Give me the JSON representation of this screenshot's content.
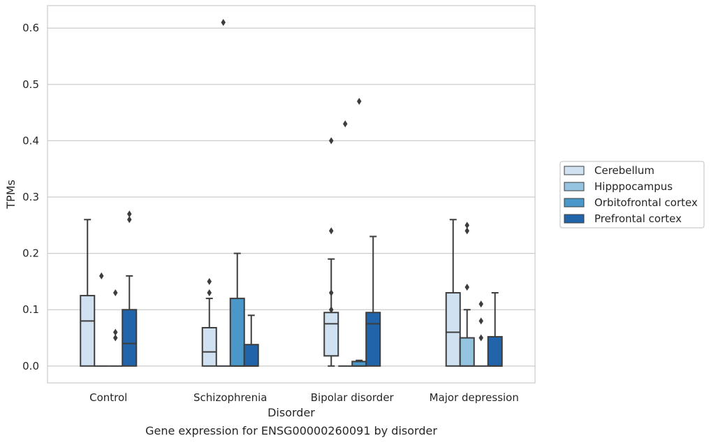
{
  "chart_data": {
    "type": "box",
    "caption": "Gene expression for ENSG00000260091 by disorder",
    "xlabel": "Disorder",
    "ylabel": "TPMs",
    "ylim": [
      -0.03,
      0.64
    ],
    "yticks": [
      0.0,
      0.1,
      0.2,
      0.3,
      0.4,
      0.5,
      0.6
    ],
    "ytick_labels": [
      "0.0",
      "0.1",
      "0.2",
      "0.3",
      "0.4",
      "0.5",
      "0.6"
    ],
    "grid": "horizontal",
    "legend_position": "right",
    "categories": [
      "Control",
      "Schizophrenia",
      "Bipolar disorder",
      "Major depression"
    ],
    "series": [
      {
        "name": "Cerebellum",
        "color": "#d0e1f2",
        "boxes": [
          {
            "q1": 0.0,
            "median": 0.08,
            "q3": 0.125,
            "whisker_low": 0.0,
            "whisker_high": 0.26,
            "outliers": []
          },
          {
            "q1": 0.0,
            "median": 0.025,
            "q3": 0.068,
            "whisker_low": 0.0,
            "whisker_high": 0.12,
            "outliers": [
              0.13,
              0.15
            ]
          },
          {
            "q1": 0.018,
            "median": 0.075,
            "q3": 0.095,
            "whisker_low": 0.0,
            "whisker_high": 0.19,
            "outliers": [
              0.1,
              0.13,
              0.24,
              0.4
            ]
          },
          {
            "q1": 0.0,
            "median": 0.06,
            "q3": 0.13,
            "whisker_low": 0.0,
            "whisker_high": 0.26,
            "outliers": []
          }
        ]
      },
      {
        "name": "Hipppocampus",
        "color": "#94c4df",
        "boxes": [
          {
            "q1": 0.0,
            "median": 0.0,
            "q3": 0.0,
            "whisker_low": 0.0,
            "whisker_high": 0.0,
            "outliers": [
              0.16
            ]
          },
          {
            "q1": 0.0,
            "median": 0.0,
            "q3": 0.0,
            "whisker_low": 0.0,
            "whisker_high": 0.0,
            "outliers": [
              0.61
            ]
          },
          {
            "q1": 0.0,
            "median": 0.0,
            "q3": 0.0,
            "whisker_low": 0.0,
            "whisker_high": 0.0,
            "outliers": [
              0.43
            ]
          },
          {
            "q1": 0.0,
            "median": 0.0,
            "q3": 0.05,
            "whisker_low": 0.0,
            "whisker_high": 0.1,
            "outliers": [
              0.14,
              0.24,
              0.25
            ]
          }
        ]
      },
      {
        "name": "Orbitofrontal cortex",
        "color": "#4a98c9",
        "boxes": [
          {
            "q1": 0.0,
            "median": 0.0,
            "q3": 0.0,
            "whisker_low": 0.0,
            "whisker_high": 0.0,
            "outliers": [
              0.05,
              0.06,
              0.13
            ]
          },
          {
            "q1": 0.0,
            "median": 0.0,
            "q3": 0.12,
            "whisker_low": 0.0,
            "whisker_high": 0.2,
            "outliers": []
          },
          {
            "q1": 0.0,
            "median": 0.0,
            "q3": 0.008,
            "whisker_low": 0.0,
            "whisker_high": 0.01,
            "outliers": [
              0.47
            ]
          },
          {
            "q1": 0.0,
            "median": 0.0,
            "q3": 0.0,
            "whisker_low": 0.0,
            "whisker_high": 0.0,
            "outliers": [
              0.05,
              0.08,
              0.11
            ]
          }
        ]
      },
      {
        "name": "Prefrontal cortex",
        "color": "#2264a9",
        "boxes": [
          {
            "q1": 0.0,
            "median": 0.04,
            "q3": 0.1,
            "whisker_low": 0.0,
            "whisker_high": 0.16,
            "outliers": [
              0.26,
              0.27
            ]
          },
          {
            "q1": 0.0,
            "median": 0.0,
            "q3": 0.038,
            "whisker_low": 0.0,
            "whisker_high": 0.09,
            "outliers": []
          },
          {
            "q1": 0.0,
            "median": 0.075,
            "q3": 0.095,
            "whisker_low": 0.0,
            "whisker_high": 0.23,
            "outliers": []
          },
          {
            "q1": 0.0,
            "median": 0.0,
            "q3": 0.052,
            "whisker_low": 0.0,
            "whisker_high": 0.13,
            "outliers": []
          }
        ]
      }
    ]
  }
}
